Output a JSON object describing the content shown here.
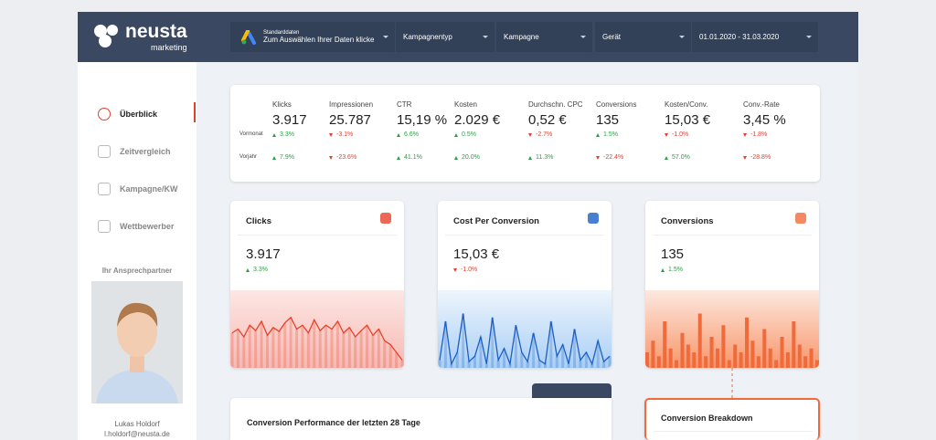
{
  "header": {
    "logo": "neusta",
    "logo_sub": "marketing",
    "filters": [
      {
        "title": "Standarddaten",
        "subtitle": "Zum Auswählen Ihrer Daten klicke"
      },
      {
        "title": "Kampagnentyp"
      },
      {
        "title": "Kampagne"
      },
      {
        "title": "Gerät"
      },
      {
        "title": "01.01.2020 - 31.03.2020"
      }
    ]
  },
  "sidebar": {
    "nav": [
      {
        "label": "Überblick",
        "active": true
      },
      {
        "label": "Zeitvergleich"
      },
      {
        "label": "Kampagne/KW"
      },
      {
        "label": "Wettbewerber"
      }
    ],
    "contact_heading": "Ihr Ansprechpartner",
    "contact_name": "Lukas Holdorf",
    "contact_email": "l.holdorf@neusta.de"
  },
  "kpis": {
    "row_labels": [
      "Vormonat",
      "Vorjahr"
    ],
    "metrics": [
      {
        "label": "Klicks",
        "value": "3.917",
        "changes": [
          {
            "text": "3.3%",
            "trend": "up"
          },
          {
            "text": "7.9%",
            "trend": "up"
          }
        ]
      },
      {
        "label": "Impressionen",
        "value": "25.787",
        "changes": [
          {
            "text": "-3.1%",
            "trend": "down"
          },
          {
            "text": "-23.6%",
            "trend": "down"
          }
        ]
      },
      {
        "label": "CTR",
        "value": "15,19 %",
        "changes": [
          {
            "text": "6.6%",
            "trend": "up"
          },
          {
            "text": "41.1%",
            "trend": "up"
          }
        ]
      },
      {
        "label": "Kosten",
        "value": "2.029 €",
        "changes": [
          {
            "text": "0.5%",
            "trend": "up"
          },
          {
            "text": "20.0%",
            "trend": "up"
          }
        ]
      },
      {
        "label": "Durchschn. CPC",
        "value": "0,52 €",
        "changes": [
          {
            "text": "-2.7%",
            "trend": "down"
          },
          {
            "text": "11.3%",
            "trend": "up"
          }
        ]
      },
      {
        "label": "Conversions",
        "value": "135",
        "changes": [
          {
            "text": "1.5%",
            "trend": "up"
          },
          {
            "text": "-22.4%",
            "trend": "down"
          }
        ]
      },
      {
        "label": "Kosten/Conv.",
        "value": "15,03 €",
        "changes": [
          {
            "text": "-1.0%",
            "trend": "down"
          },
          {
            "text": "57.0%",
            "trend": "up"
          }
        ]
      },
      {
        "label": "Conv.-Rate",
        "value": "3,45 %",
        "changes": [
          {
            "text": "-1.8%",
            "trend": "down"
          },
          {
            "text": "-28.8%",
            "trend": "down"
          }
        ]
      }
    ]
  },
  "cards": [
    {
      "title": "Clicks",
      "value": "3.917",
      "change": {
        "text": "3.3%",
        "trend": "up"
      },
      "chart": {
        "type": "line",
        "color": "#e8412c",
        "ylim": [
          0,
          100
        ],
        "values": [
          45,
          50,
          40,
          55,
          48,
          60,
          42,
          52,
          47,
          58,
          65,
          50,
          55,
          45,
          62,
          48,
          55,
          50,
          60,
          45,
          52,
          40,
          48,
          55,
          42,
          50,
          35,
          30,
          20,
          10
        ]
      }
    },
    {
      "title": "Cost Per Conversion",
      "value": "15,03 €",
      "change": {
        "text": "-1.0%",
        "trend": "down"
      },
      "chart": {
        "type": "line",
        "color": "#1c5fc4",
        "ylim": [
          0,
          100
        ],
        "values": [
          10,
          60,
          5,
          20,
          70,
          8,
          15,
          40,
          5,
          65,
          10,
          25,
          5,
          55,
          20,
          8,
          45,
          10,
          5,
          60,
          15,
          30,
          5,
          50,
          10,
          20,
          5,
          35,
          8,
          15
        ]
      }
    },
    {
      "title": "Conversions",
      "value": "135",
      "change": {
        "text": "1.5%",
        "trend": "up"
      },
      "chart": {
        "type": "bar",
        "color": "#f06a3c",
        "ylim": [
          0,
          100
        ],
        "values": [
          20,
          35,
          15,
          60,
          25,
          10,
          45,
          30,
          20,
          70,
          15,
          40,
          25,
          55,
          10,
          30,
          20,
          65,
          35,
          15,
          50,
          25,
          10,
          40,
          20,
          60,
          30,
          15,
          25,
          10
        ]
      }
    }
  ],
  "bottom": {
    "performance_title": "Conversion Performance der letzten 28 Tage",
    "breakdown_title": "Conversion Breakdown"
  }
}
